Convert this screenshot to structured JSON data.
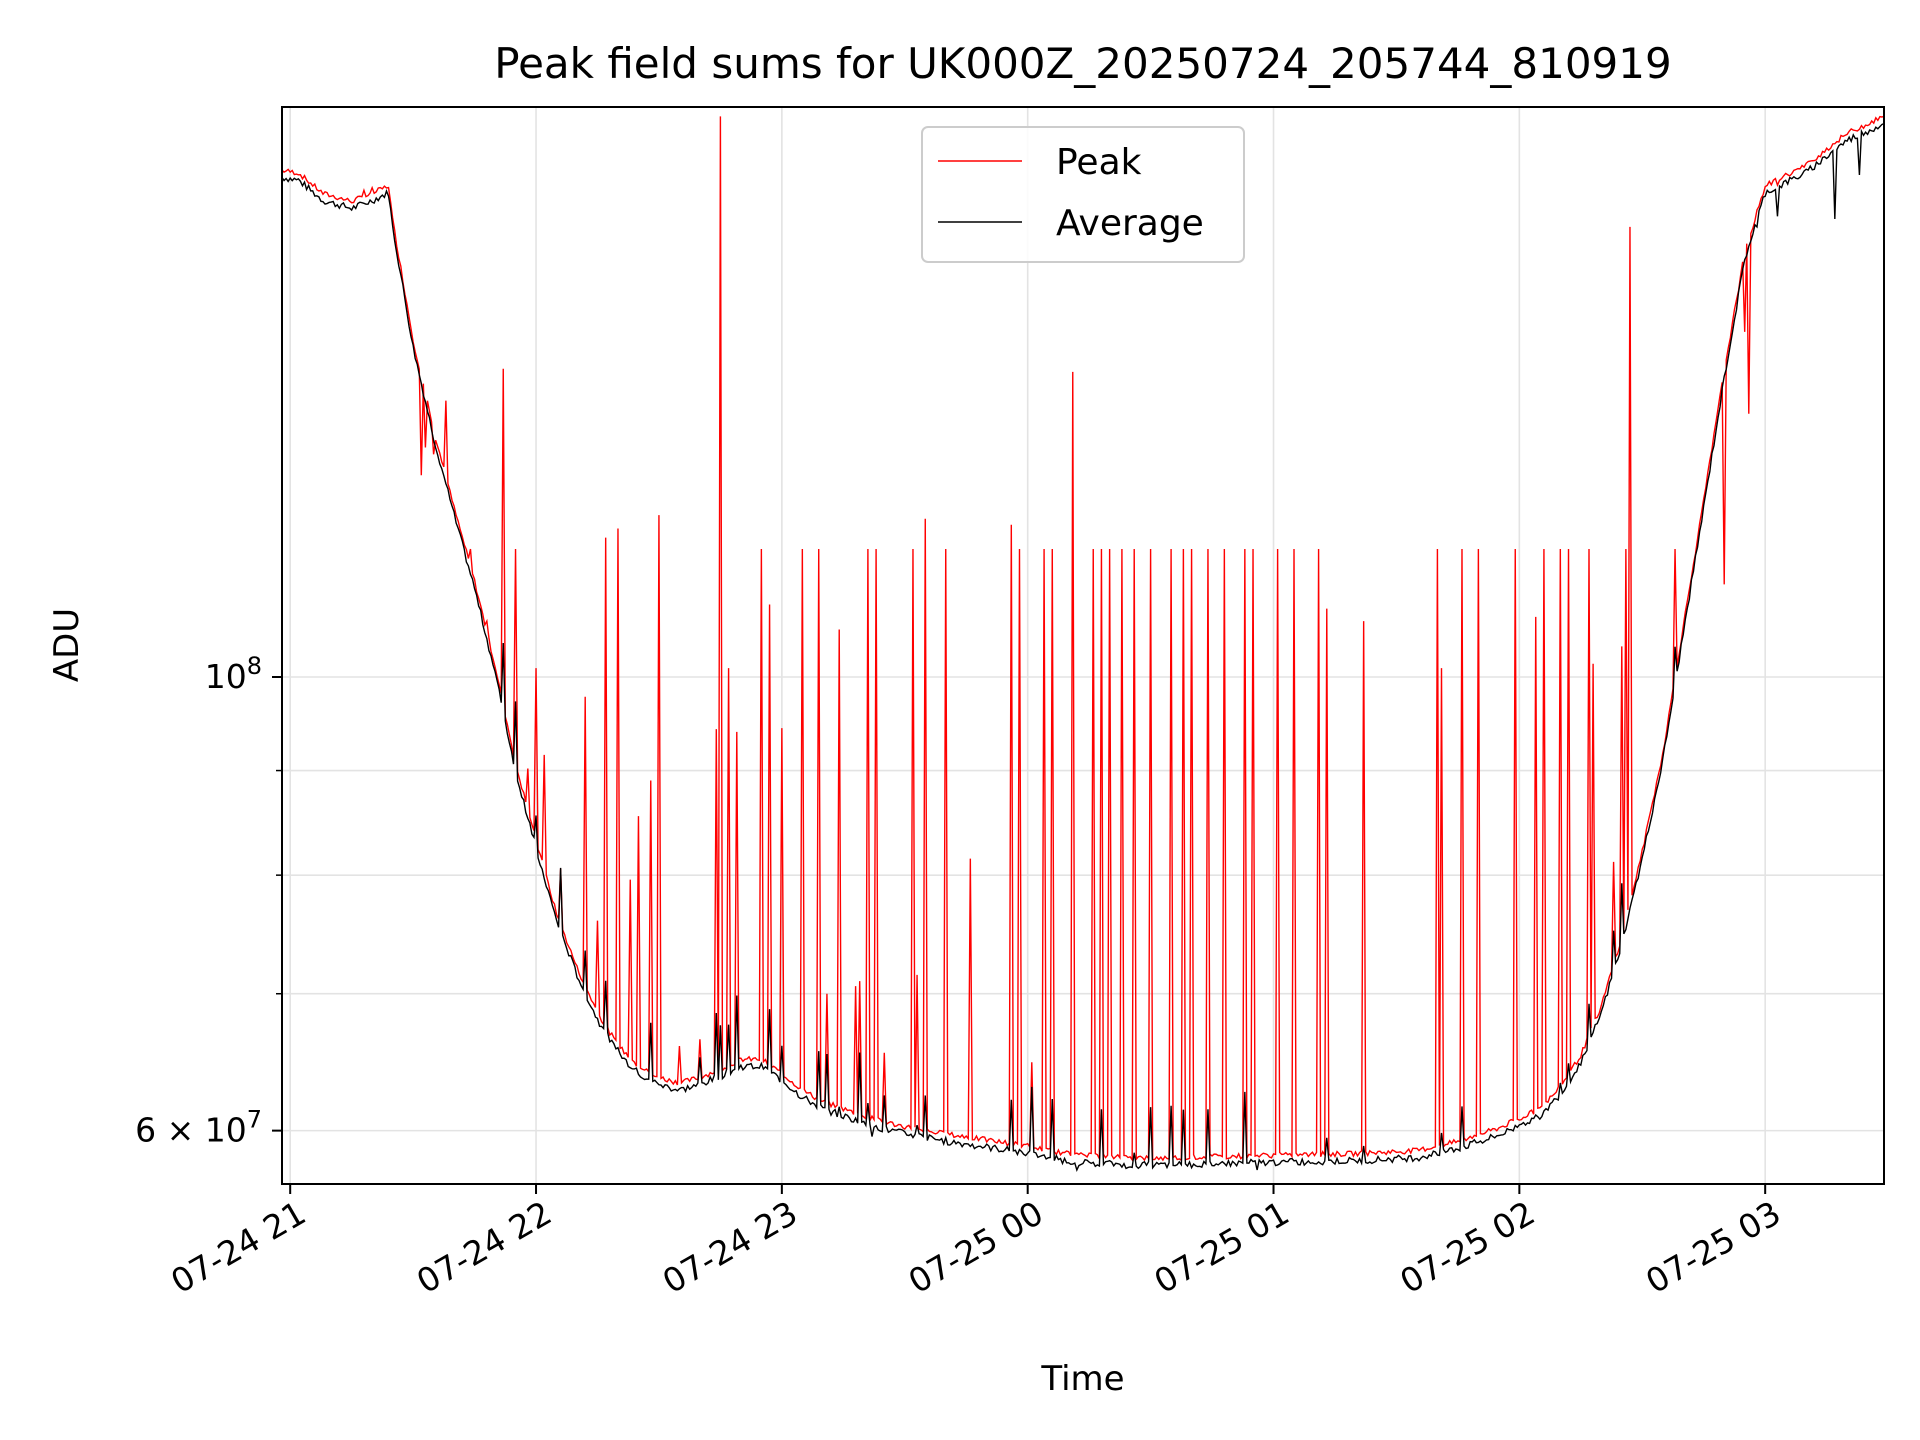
{
  "chart_data": {
    "type": "line",
    "title": "Peak field sums for UK000Z_20250724_205744_810919",
    "xlabel": "Time",
    "ylabel": "ADU",
    "yscale": "log",
    "ylim": [
      56500000,
      190000000
    ],
    "xlim": [
      "2025-07-24 20:58",
      "2025-07-25 03:29"
    ],
    "grid": true,
    "legend_position": "upper center",
    "x_ticks": [
      {
        "value": "2025-07-24 21:00",
        "label": "07-24 21"
      },
      {
        "value": "2025-07-24 22:00",
        "label": "07-24 22"
      },
      {
        "value": "2025-07-24 23:00",
        "label": "07-24 23"
      },
      {
        "value": "2025-07-25 00:00",
        "label": "07-25 00"
      },
      {
        "value": "2025-07-25 01:00",
        "label": "07-25 01"
      },
      {
        "value": "2025-07-25 02:00",
        "label": "07-25 02"
      },
      {
        "value": "2025-07-25 03:00",
        "label": "07-25 03"
      }
    ],
    "y_ticks": [
      {
        "value": 100000000,
        "label_base": "10",
        "label_exp": "8"
      },
      {
        "value": 60000000,
        "label_base": "6 × 10",
        "label_exp": "7"
      }
    ],
    "y_minor_ticks": [
      70000000,
      80000000,
      90000000
    ],
    "series": [
      {
        "name": "Average",
        "color": "#000000",
        "points": [
          [
            "2025-07-24 20:58",
            175500000
          ],
          [
            "2025-07-24 21:02",
            175000000
          ],
          [
            "2025-07-24 21:08",
            171000000
          ],
          [
            "2025-07-24 21:15",
            169500000
          ],
          [
            "2025-07-24 21:20",
            171000000
          ],
          [
            "2025-07-24 21:24",
            172500000
          ],
          [
            "2025-07-24 21:25",
            166000000
          ],
          [
            "2025-07-24 21:30",
            145000000
          ],
          [
            "2025-07-24 21:35",
            131000000
          ],
          [
            "2025-07-24 21:40",
            120000000
          ],
          [
            "2025-07-24 21:45",
            110500000
          ],
          [
            "2025-07-24 21:50",
            100500000
          ],
          [
            "2025-07-24 21:55",
            90000000
          ],
          [
            "2025-07-24 22:00",
            82500000
          ],
          [
            "2025-07-24 22:05",
            76000000
          ],
          [
            "2025-07-24 22:10",
            71500000
          ],
          [
            "2025-07-24 22:15",
            68000000
          ],
          [
            "2025-07-24 22:20",
            65500000
          ],
          [
            "2025-07-24 22:25",
            64000000
          ],
          [
            "2025-07-24 22:30",
            63200000
          ],
          [
            "2025-07-24 22:35",
            62800000
          ],
          [
            "2025-07-24 22:40",
            63200000
          ],
          [
            "2025-07-24 22:45",
            63800000
          ],
          [
            "2025-07-24 22:50",
            64500000
          ],
          [
            "2025-07-24 22:55",
            64500000
          ],
          [
            "2025-07-24 23:00",
            63500000
          ],
          [
            "2025-07-24 23:05",
            62300000
          ],
          [
            "2025-07-24 23:10",
            61500000
          ],
          [
            "2025-07-24 23:15",
            61000000
          ],
          [
            "2025-07-24 23:20",
            60500000
          ],
          [
            "2025-07-24 23:25",
            60100000
          ],
          [
            "2025-07-24 23:30",
            59800000
          ],
          [
            "2025-07-24 23:40",
            59300000
          ],
          [
            "2025-07-24 23:50",
            58900000
          ],
          [
            "2025-07-25 00:00",
            58500000
          ],
          [
            "2025-07-25 00:05",
            58200000
          ],
          [
            "2025-07-25 00:12",
            57900000
          ],
          [
            "2025-07-25 00:30",
            57700000
          ],
          [
            "2025-07-25 01:00",
            57900000
          ],
          [
            "2025-07-25 01:20",
            58000000
          ],
          [
            "2025-07-25 01:35",
            58200000
          ],
          [
            "2025-07-25 01:45",
            58800000
          ],
          [
            "2025-07-25 01:55",
            59700000
          ],
          [
            "2025-07-25 02:05",
            61000000
          ],
          [
            "2025-07-25 02:10",
            62500000
          ],
          [
            "2025-07-25 02:15",
            64800000
          ],
          [
            "2025-07-25 02:20",
            68500000
          ],
          [
            "2025-07-25 02:25",
            74000000
          ],
          [
            "2025-07-25 02:30",
            81500000
          ],
          [
            "2025-07-25 02:35",
            91000000
          ],
          [
            "2025-07-25 02:40",
            105000000
          ],
          [
            "2025-07-25 02:45",
            121000000
          ],
          [
            "2025-07-25 02:50",
            140000000
          ],
          [
            "2025-07-25 02:55",
            160000000
          ],
          [
            "2025-07-25 03:00",
            172500000
          ],
          [
            "2025-07-25 03:10",
            176500000
          ],
          [
            "2025-07-25 03:20",
            183000000
          ],
          [
            "2025-07-25 03:29",
            186500000
          ]
        ],
        "dips": [
          [
            "2025-07-25 02:58",
            166000000
          ],
          [
            "2025-07-25 03:03",
            168000000
          ],
          [
            "2025-07-25 03:17",
            167500000
          ],
          [
            "2025-07-25 03:23",
            176000000
          ],
          [
            "2025-07-25 00:12",
            57400000
          ],
          [
            "2025-07-25 00:24",
            57500000
          ],
          [
            "2025-07-25 00:56",
            57400000
          ],
          [
            "2025-07-24 23:22",
            59600000
          ]
        ]
      },
      {
        "name": "Peak",
        "color": "#ff0000",
        "base_offset": 1.008,
        "spikes": [
          [
            "2025-07-24 21:18",
            173000000
          ],
          [
            "2025-07-24 21:20",
            173500000
          ],
          [
            "2025-07-24 21:32",
            125500000
          ],
          [
            "2025-07-24 21:33",
            129500000
          ],
          [
            "2025-07-24 21:35",
            128500000
          ],
          [
            "2025-07-24 21:38",
            136500000
          ],
          [
            "2025-07-24 21:44",
            115500000
          ],
          [
            "2025-07-24 21:48",
            106500000
          ],
          [
            "2025-07-24 21:52",
            141500000
          ],
          [
            "2025-07-24 21:55",
            115500000
          ],
          [
            "2025-07-24 21:58",
            90200000
          ],
          [
            "2025-07-24 22:00",
            101000000
          ],
          [
            "2025-07-24 22:02",
            91600000
          ],
          [
            "2025-07-24 22:06",
            80600000
          ],
          [
            "2025-07-24 22:12",
            97800000
          ],
          [
            "2025-07-24 22:15",
            76000000
          ],
          [
            "2025-07-24 22:17",
            117000000
          ],
          [
            "2025-07-24 22:20",
            118200000
          ],
          [
            "2025-07-24 22:23",
            79600000
          ],
          [
            "2025-07-24 22:25",
            85500000
          ],
          [
            "2025-07-24 22:28",
            89000000
          ],
          [
            "2025-07-24 22:30",
            120000000
          ],
          [
            "2025-07-24 22:35",
            66000000
          ],
          [
            "2025-07-24 22:40",
            66500000
          ],
          [
            "2025-07-24 22:44",
            94300000
          ],
          [
            "2025-07-24 22:45",
            188000000
          ],
          [
            "2025-07-24 22:47",
            101000000
          ],
          [
            "2025-07-24 22:49",
            94000000
          ],
          [
            "2025-07-24 22:55",
            115500000
          ],
          [
            "2025-07-24 22:57",
            108500000
          ],
          [
            "2025-07-24 23:00",
            94400000
          ],
          [
            "2025-07-24 23:05",
            115500000
          ],
          [
            "2025-07-24 23:09",
            115500000
          ],
          [
            "2025-07-24 23:11",
            70000000
          ],
          [
            "2025-07-24 23:14",
            105500000
          ],
          [
            "2025-07-24 23:18",
            70600000
          ],
          [
            "2025-07-24 23:19",
            71000000
          ],
          [
            "2025-07-24 23:21",
            115500000
          ],
          [
            "2025-07-24 23:23",
            115500000
          ],
          [
            "2025-07-24 23:25",
            65500000
          ],
          [
            "2025-07-24 23:32",
            115500000
          ],
          [
            "2025-07-24 23:33",
            71500000
          ],
          [
            "2025-07-24 23:35",
            119500000
          ],
          [
            "2025-07-24 23:40",
            115500000
          ],
          [
            "2025-07-24 23:46",
            81500000
          ],
          [
            "2025-07-24 23:56",
            118700000
          ],
          [
            "2025-07-24 23:58",
            115500000
          ],
          [
            "2025-07-25 00:01",
            64800000
          ],
          [
            "2025-07-25 00:04",
            115500000
          ],
          [
            "2025-07-25 00:06",
            115500000
          ],
          [
            "2025-07-25 00:11",
            141000000
          ],
          [
            "2025-07-25 00:16",
            115500000
          ],
          [
            "2025-07-25 00:18",
            115500000
          ],
          [
            "2025-07-25 00:20",
            115500000
          ],
          [
            "2025-07-25 00:23",
            115500000
          ],
          [
            "2025-07-25 00:26",
            115500000
          ],
          [
            "2025-07-25 00:30",
            115500000
          ],
          [
            "2025-07-25 00:35",
            115500000
          ],
          [
            "2025-07-25 00:38",
            115500000
          ],
          [
            "2025-07-25 00:40",
            115500000
          ],
          [
            "2025-07-25 00:44",
            115500000
          ],
          [
            "2025-07-25 00:48",
            115500000
          ],
          [
            "2025-07-25 00:53",
            115500000
          ],
          [
            "2025-07-25 00:55",
            115500000
          ],
          [
            "2025-07-25 01:01",
            115500000
          ],
          [
            "2025-07-25 01:05",
            115500000
          ],
          [
            "2025-07-25 01:11",
            115500000
          ],
          [
            "2025-07-25 01:13",
            108000000
          ],
          [
            "2025-07-25 01:22",
            106500000
          ],
          [
            "2025-07-25 01:40",
            115500000
          ],
          [
            "2025-07-25 01:41",
            101000000
          ],
          [
            "2025-07-25 01:46",
            115500000
          ],
          [
            "2025-07-25 01:50",
            115500000
          ],
          [
            "2025-07-25 01:59",
            115500000
          ],
          [
            "2025-07-25 02:04",
            107000000
          ],
          [
            "2025-07-25 02:06",
            115500000
          ],
          [
            "2025-07-25 02:10",
            115500000
          ],
          [
            "2025-07-25 02:12",
            115500000
          ],
          [
            "2025-07-25 02:17",
            115500000
          ],
          [
            "2025-07-25 02:18",
            101500000
          ],
          [
            "2025-07-25 02:23",
            81200000
          ],
          [
            "2025-07-25 02:25",
            103500000
          ],
          [
            "2025-07-25 02:26",
            115500000
          ],
          [
            "2025-07-25 02:27",
            166000000
          ],
          [
            "2025-07-25 02:38",
            115500000
          ],
          [
            "2025-07-25 02:50",
            111000000
          ],
          [
            "2025-07-25 02:55",
            147500000
          ],
          [
            "2025-07-25 02:56",
            134500000
          ],
          [
            "2025-07-25 03:03",
            174000000
          ]
        ]
      }
    ]
  }
}
